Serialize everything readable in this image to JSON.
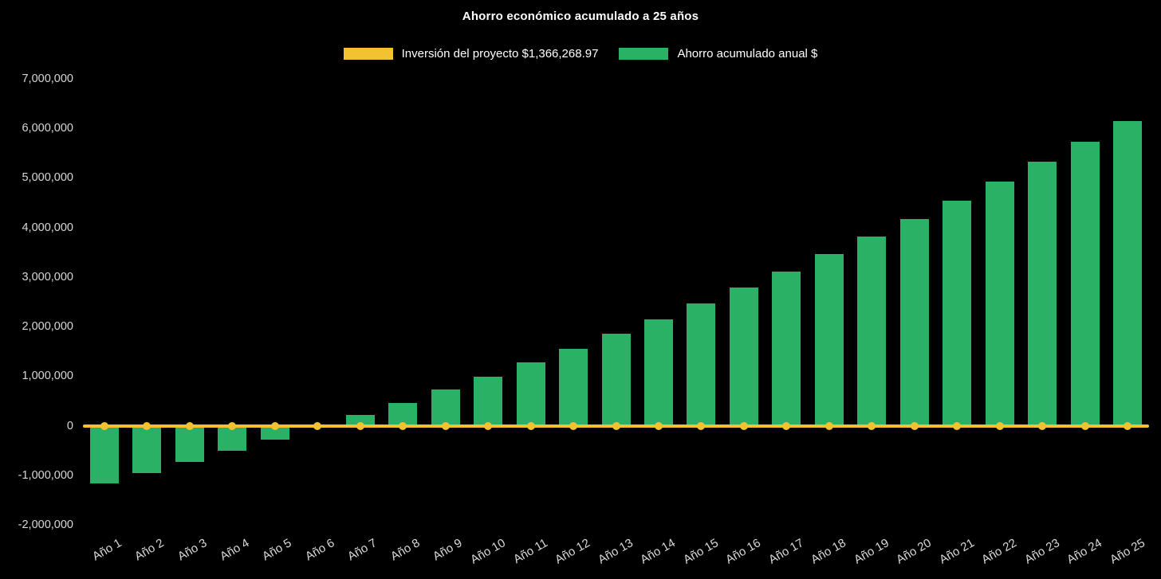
{
  "chart_data": {
    "type": "bar",
    "title": "Ahorro económico acumulado a 25 años",
    "xlabel": "",
    "ylabel": "",
    "ylim": [
      -2000000,
      7000000
    ],
    "ytick_step": 1000000,
    "grid": false,
    "legend_position": "top",
    "background_color": "#000000",
    "title_color": "#FFFFFF",
    "axis_label_color": "#D8D8D8",
    "categories": [
      "Año 1",
      "Año 2",
      "Año 3",
      "Año 4",
      "Año 5",
      "Año 6",
      "Año 7",
      "Año 8",
      "Año 9",
      "Año 10",
      "Año 11",
      "Año 12",
      "Año 13",
      "Año 14",
      "Año 15",
      "Año 16",
      "Año 17",
      "Año 18",
      "Año 19",
      "Año 20",
      "Año 21",
      "Año 22",
      "Año 23",
      "Año 24",
      "Año 25"
    ],
    "series": [
      {
        "name": "Inversión del proyecto $1,366,268.97",
        "type": "line",
        "color": "#F2C230",
        "values": [
          0,
          0,
          0,
          0,
          0,
          0,
          0,
          0,
          0,
          0,
          0,
          0,
          0,
          0,
          0,
          0,
          0,
          0,
          0,
          0,
          0,
          0,
          0,
          0,
          0
        ]
      },
      {
        "name": "Ahorro acumulado anual $",
        "type": "bar",
        "color": "#2BB165",
        "values": [
          -1160000,
          -948000,
          -730000,
          -505000,
          -273000,
          -34000,
          212000,
          465000,
          726000,
          995000,
          1272000,
          1557000,
          1851000,
          2154000,
          2466000,
          2787000,
          3118000,
          3459000,
          3810000,
          4172000,
          4545000,
          4929000,
          5325000,
          5733000,
          6153000
        ]
      }
    ]
  }
}
